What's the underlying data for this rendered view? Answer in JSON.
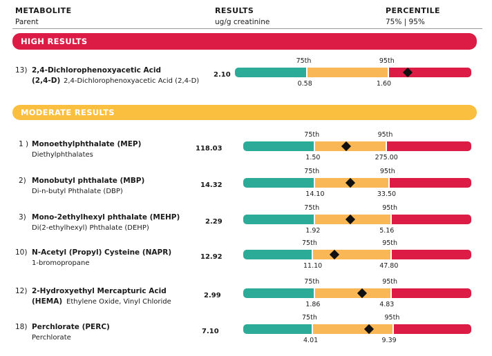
{
  "header": {
    "metabolite_label": "METABOLITE",
    "metabolite_sub": "Parent",
    "results_label": "RESULTS",
    "results_sub": "ug/g creatinine",
    "percentile_label": "PERCENTILE",
    "percentile_sub": "75% | 95%"
  },
  "sections": {
    "high": "HIGH RESULTS",
    "moderate": "MODERATE RESULTS"
  },
  "ticks": {
    "p75": "75th",
    "p95": "95th"
  },
  "rows": [
    {
      "num": "13)",
      "name": "2,4-Dichlorophenoxyacetic Acid",
      "name2": "(2,4-D)",
      "parent": "2,4-Dichlorophenoxyacetic Acid (2,4-D)",
      "value": "2.10",
      "p75": "0.58",
      "p95": "1.60",
      "marker_pos": 0.73
    },
    {
      "num": "1 )",
      "name": "Monoethylphthalate (MEP)",
      "name2": "",
      "parent": "Diethylphthalates",
      "value": "118.03",
      "p75": "1.50",
      "p95": "275.00",
      "marker_pos": 0.45
    },
    {
      "num": "2)",
      "name": "Monobutyl phthalate (MBP)",
      "name2": "",
      "parent": "Di-n-butyl Phthalate (DBP)",
      "value": "14.32",
      "p75": "14.10",
      "p95": "33.50",
      "marker_pos": 0.47
    },
    {
      "num": "3)",
      "name": "Mono-2ethylhexyl phthalate (MEHP)",
      "name2": "",
      "parent": "Di(2-ethylhexyl) Phthalate (DEHP)",
      "value": "2.29",
      "p75": "1.92",
      "p95": "5.16",
      "marker_pos": 0.47
    },
    {
      "num": "10)",
      "name": "N-Acetyl (Propyl) Cysteine (NAPR)",
      "name2": "",
      "parent": "1-bromopropane",
      "value": "12.92",
      "p75": "11.10",
      "p95": "47.80",
      "marker_pos": 0.4
    },
    {
      "num": "12)",
      "name": "2-Hydroxyethyl Mercapturic Acid",
      "name2": "(HEMA)",
      "parent": "Ethylene Oxide, Vinyl Chloride",
      "value": "2.99",
      "p75": "1.86",
      "p95": "4.83",
      "marker_pos": 0.52
    },
    {
      "num": "18)",
      "name": "Perchlorate (PERC)",
      "name2": "",
      "parent": "Perchlorate",
      "value": "7.10",
      "p75": "4.01",
      "p95": "9.39",
      "marker_pos": 0.55
    }
  ],
  "colors": {
    "low": "#2bab98",
    "mid": "#f9b855",
    "high": "#dc1c45",
    "marker": "#111111"
  }
}
